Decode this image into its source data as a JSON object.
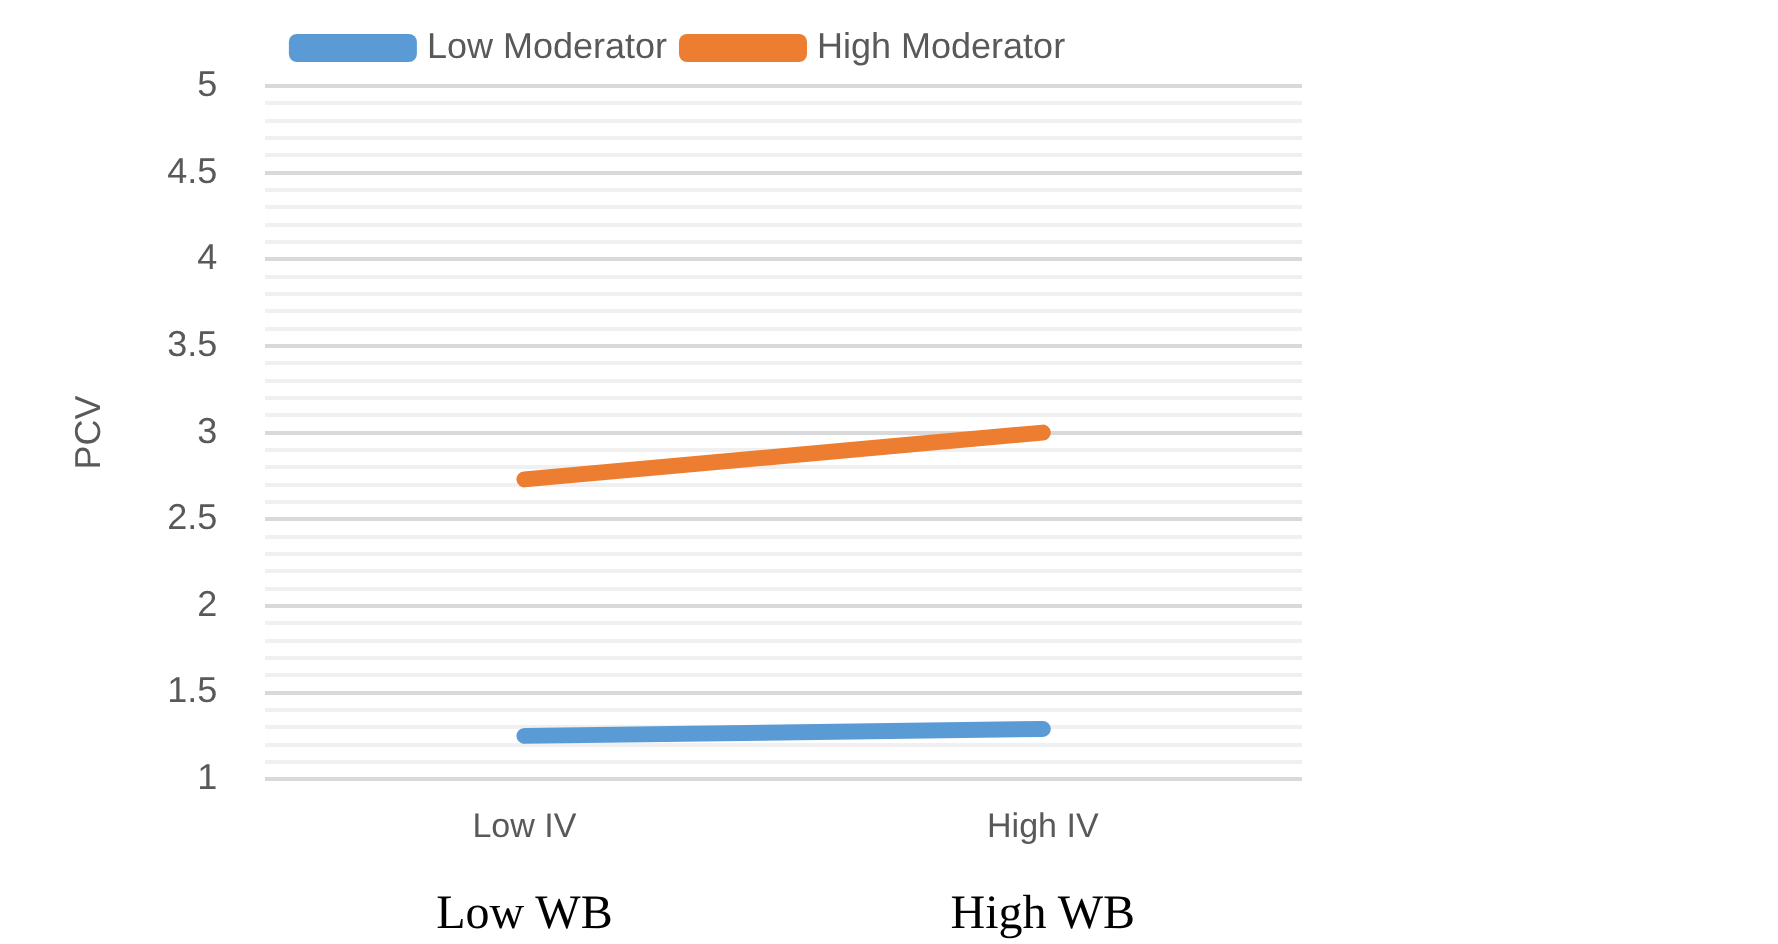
{
  "chart_data": {
    "type": "line",
    "ylabel": "PCV",
    "categories": [
      "Low IV",
      "High IV"
    ],
    "series": [
      {
        "name": "Low Moderator",
        "color": "#5b9bd5",
        "values": [
          1.25,
          1.29
        ]
      },
      {
        "name": "High Moderator",
        "color": "#ed7d31",
        "values": [
          2.73,
          3.0
        ]
      }
    ],
    "ylim": [
      1,
      5
    ],
    "yticks": [
      1,
      {
        "value": 1.1,
        "label": null
      },
      {
        "value": 1.2,
        "label": null
      },
      {
        "value": 1.3,
        "label": null
      },
      {
        "value": 1.4,
        "label": null
      },
      1.5,
      {
        "value": 1.6,
        "label": null
      },
      {
        "value": 1.7,
        "label": null
      },
      {
        "value": 1.8,
        "label": null
      },
      {
        "value": 1.9,
        "label": null
      },
      2,
      {
        "value": 2.1,
        "label": null
      },
      {
        "value": 2.2,
        "label": null
      },
      {
        "value": 2.3,
        "label": null
      },
      {
        "value": 2.4,
        "label": null
      },
      2.5,
      {
        "value": 2.6,
        "label": null
      },
      {
        "value": 2.7,
        "label": null
      },
      {
        "value": 2.8,
        "label": null
      },
      {
        "value": 2.9,
        "label": null
      },
      3,
      {
        "value": 3.1,
        "label": null
      },
      {
        "value": 3.2,
        "label": null
      },
      {
        "value": 3.3,
        "label": null
      },
      {
        "value": 3.4,
        "label": null
      },
      3.5,
      {
        "value": 3.6,
        "label": null
      },
      {
        "value": 3.7,
        "label": null
      },
      {
        "value": 3.8,
        "label": null
      },
      {
        "value": 3.9,
        "label": null
      },
      4,
      {
        "value": 4.1,
        "label": null
      },
      {
        "value": 4.2,
        "label": null
      },
      {
        "value": 4.3,
        "label": null
      },
      {
        "value": 4.4,
        "label": null
      },
      4.5,
      {
        "value": 4.6,
        "label": null
      },
      {
        "value": 4.7,
        "label": null
      },
      {
        "value": 4.8,
        "label": null
      },
      {
        "value": 4.9,
        "label": null
      },
      5
    ],
    "grid": "y",
    "legend": "top",
    "marker": "none",
    "line_style": "solid",
    "annotations": [
      "Low WB",
      "High WB"
    ]
  }
}
